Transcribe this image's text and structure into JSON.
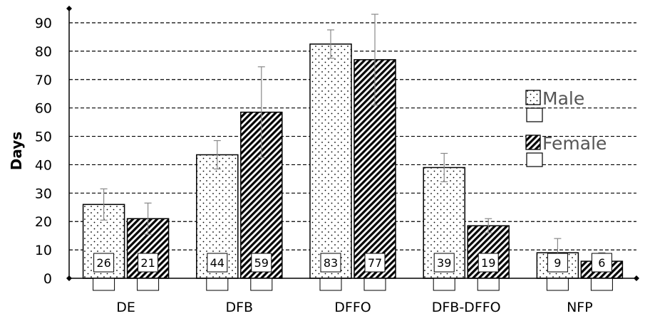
{
  "chart_data": {
    "type": "bar",
    "title": "",
    "xlabel": "",
    "ylabel": "Days",
    "ylim": [
      0,
      90
    ],
    "yticks": [
      0,
      10,
      20,
      30,
      40,
      50,
      60,
      70,
      80,
      90
    ],
    "grid": "horizontal dashed",
    "legend_position": "right",
    "categories": [
      "DE",
      "DFB",
      "DFFO",
      "DFB-DFFO",
      "NFP"
    ],
    "series": [
      {
        "name": "Male",
        "pattern": "dots",
        "values": [
          26,
          43.5,
          82.5,
          39,
          9
        ],
        "error": [
          5.5,
          5,
          5,
          5,
          5
        ],
        "labels": [
          "26",
          "44",
          "83",
          "39",
          "9"
        ]
      },
      {
        "name": "Female",
        "pattern": "diagonal-stripes",
        "values": [
          21,
          58.5,
          77,
          18.5,
          6
        ],
        "error": [
          5.5,
          16,
          16,
          2.5,
          3
        ],
        "labels": [
          "21",
          "59",
          "77",
          "19",
          "6"
        ]
      }
    ],
    "colors": {
      "grid": "#000000",
      "bar_stroke": "#000000",
      "error_bar": "#888888",
      "legend_text": "#555555"
    }
  }
}
